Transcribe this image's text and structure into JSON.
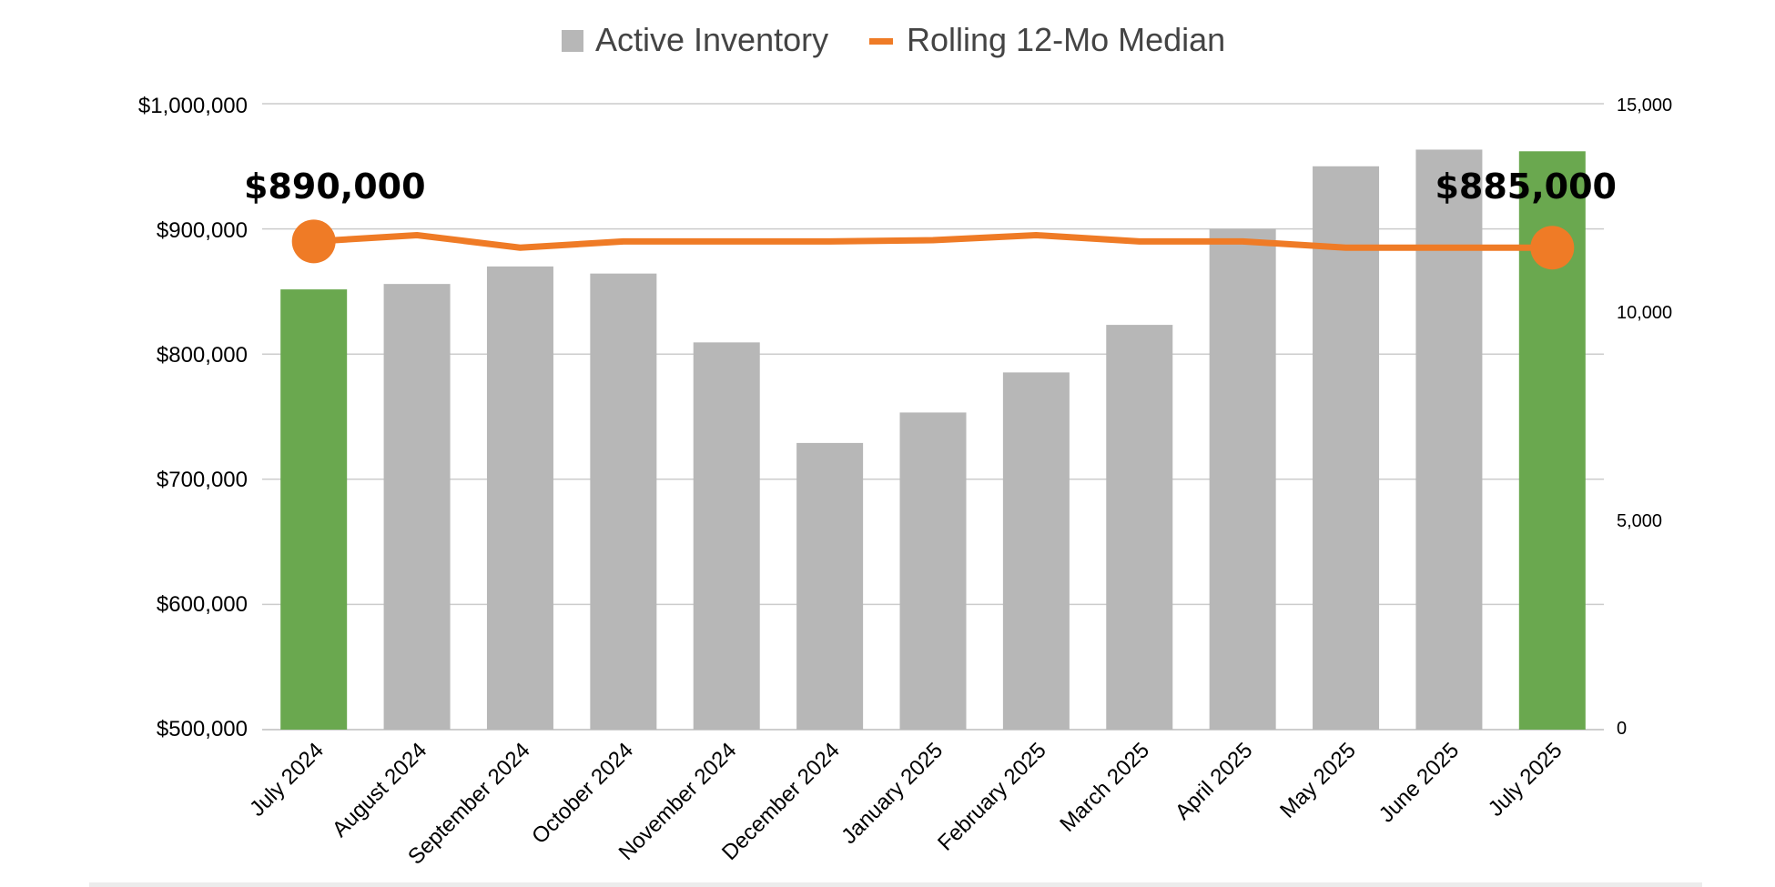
{
  "chart_data": {
    "type": "bar",
    "categories": [
      "July 2024",
      "August 2024",
      "September 2024",
      "October 2024",
      "November 2024",
      "December 2024",
      "January 2025",
      "February 2025",
      "March 2025",
      "April 2025",
      "May 2025",
      "June 2025",
      "July 2025"
    ],
    "series": [
      {
        "name": "Active Inventory",
        "type": "bar",
        "axis": "right",
        "color": "#b7b7b7",
        "highlight_color": "#6aa84f",
        "highlight_indices": [
          0,
          12
        ],
        "values": [
          10550,
          10680,
          11100,
          10930,
          9280,
          6870,
          7600,
          8560,
          9700,
          12000,
          13500,
          13900,
          13860
        ]
      },
      {
        "name": "Rolling 12-Mo Median",
        "type": "line",
        "axis": "left",
        "color": "#ef7b26",
        "values": [
          890000,
          895000,
          885000,
          890000,
          890000,
          890000,
          891000,
          895000,
          890000,
          890000,
          885000,
          885000,
          885000
        ]
      }
    ],
    "y_left": {
      "range": [
        500000,
        1000000
      ],
      "ticks": [
        "$1,000,000",
        "$900,000",
        "$800,000",
        "$700,000",
        "$600,000",
        "$500,000"
      ]
    },
    "y_right": {
      "range": [
        0,
        15000
      ],
      "ticks": [
        "15,000",
        "10,000",
        "5,000",
        "0"
      ]
    },
    "grid": true,
    "legend_position": "top-center",
    "annotations": [
      {
        "text": "$890,000",
        "index": 0
      },
      {
        "text": "$885,000",
        "index": 12
      }
    ]
  }
}
